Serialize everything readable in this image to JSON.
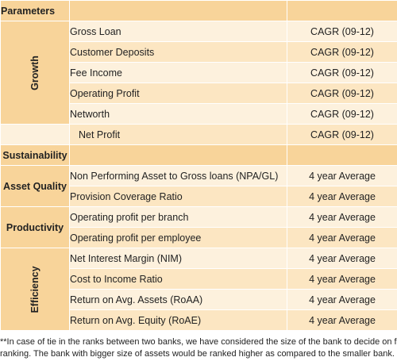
{
  "header": {
    "col1": "Parameters",
    "col2": "",
    "col3": ""
  },
  "groups": {
    "growth": {
      "label": "Growth",
      "rows": [
        {
          "param": "Gross Loan",
          "metric": "CAGR (09-12)"
        },
        {
          "param": "Customer Deposits",
          "metric": "CAGR (09-12)"
        },
        {
          "param": "Fee Income",
          "metric": "CAGR (09-12)"
        },
        {
          "param": "Operating Profit",
          "metric": "CAGR (09-12)"
        },
        {
          "param": "Networth",
          "metric": "CAGR (09-12)"
        },
        {
          "param": "Net Profit",
          "metric": "CAGR (09-12)"
        }
      ]
    },
    "sustainability": {
      "label": "Sustainability"
    },
    "asset_quality": {
      "label": "Asset Quality",
      "rows": [
        {
          "param": "Non Performing Asset to Gross loans (NPA/GL)",
          "metric": "4 year Average"
        },
        {
          "param": "Provision Coverage Ratio",
          "metric": "4 year Average"
        }
      ]
    },
    "productivity": {
      "label": "Productivity",
      "rows": [
        {
          "param": "Operating profit per branch",
          "metric": "4 year Average"
        },
        {
          "param": "Operating profit per employee",
          "metric": "4 year Average"
        }
      ]
    },
    "efficiency": {
      "label": "Efficiency",
      "rows": [
        {
          "param": "Net Interest Margin (NIM)",
          "metric": "4 year Average"
        },
        {
          "param": "Cost to Income Ratio",
          "metric": "4 year Average"
        },
        {
          "param": "Return on Avg. Assets (RoAA)",
          "metric": "4 year Average"
        },
        {
          "param": "Return on Avg. Equity (RoAE)",
          "metric": "4 year Average"
        }
      ]
    }
  },
  "footnote": {
    "line1": "**In case of tie in the ranks between two banks, we have considered the size of the bank to decide on final",
    "line2": "ranking. The bank with bigger size of assets would be ranked higher as compared to the smaller bank."
  },
  "colors": {
    "category": "#f8d49a",
    "row_light": "#fdf1dd",
    "row_alt": "#fce6c2",
    "divider": "#ffffff"
  }
}
